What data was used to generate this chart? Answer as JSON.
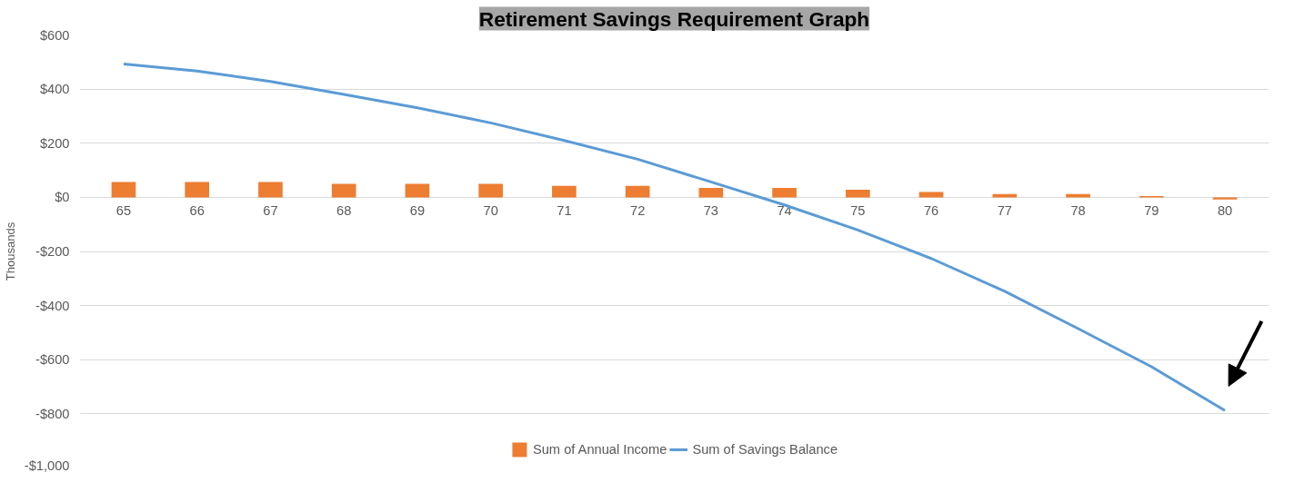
{
  "chart_data": {
    "type": "bar",
    "title": "Retirement Savings Requirement Graph",
    "ylabel": "Thousands",
    "categories": [
      "65",
      "66",
      "67",
      "68",
      "69",
      "70",
      "71",
      "72",
      "73",
      "74",
      "75",
      "76",
      "77",
      "78",
      "79",
      "80"
    ],
    "series": [
      {
        "name": "Sum of Annual Income",
        "color": "#ed7d31",
        "values": [
          57,
          57,
          57,
          50,
          50,
          50,
          42,
          42,
          35,
          35,
          28,
          20,
          12,
          12,
          5,
          -8
        ]
      },
      {
        "name": "Sum of Savings Balance",
        "type": "line",
        "color": "#5b9bd5",
        "values": [
          493,
          467,
          428,
          380,
          331,
          275,
          210,
          141,
          57,
          -28,
          -121,
          -226,
          -347,
          -485,
          -626,
          -788
        ]
      }
    ],
    "ylim": [
      -1000,
      600
    ],
    "yticks": [
      {
        "value": -1000,
        "label": "-$1,000"
      },
      {
        "value": -800,
        "label": "-$800"
      },
      {
        "value": -600,
        "label": "-$600"
      },
      {
        "value": -400,
        "label": "-$400"
      },
      {
        "value": -200,
        "label": "-$200"
      },
      {
        "value": 0,
        "label": "$0"
      },
      {
        "value": 200,
        "label": "$200"
      },
      {
        "value": 400,
        "label": "$400"
      },
      {
        "value": 600,
        "label": "$600"
      }
    ],
    "grid": "y",
    "legend": "bottom",
    "line_style": "solid"
  }
}
